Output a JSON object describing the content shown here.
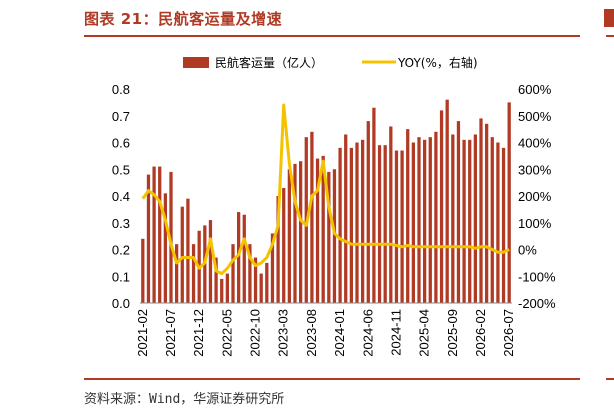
{
  "header": {
    "figure_title": "图表 21：民航客运量及增速",
    "source": "资料来源：Wind，华源证券研究所"
  },
  "chart_data": {
    "type": "bar+line",
    "colors": {
      "bar": "#b03a24",
      "line": "#f5c200",
      "accent": "#b03a24"
    },
    "legend": {
      "position": "top",
      "bar_label": "民航客运量（亿人）",
      "line_label": "YOY(%，右轴)"
    },
    "y_left": {
      "min": 0,
      "max": 0.8,
      "ticks": [
        "0.0",
        "0.1",
        "0.2",
        "0.3",
        "0.4",
        "0.5",
        "0.6",
        "0.7",
        "0.8"
      ]
    },
    "y_right": {
      "min": -200,
      "max": 600,
      "ticks": [
        "-200%",
        "-100%",
        "0%",
        "100%",
        "200%",
        "300%",
        "400%",
        "500%",
        "600%"
      ]
    },
    "x_tick_labels": [
      "2021-02",
      "2021-07",
      "2021-12",
      "2022-05",
      "2022-10",
      "2023-03",
      "2023-08",
      "2024-01",
      "2024-06",
      "2024-11",
      "2025-04",
      "2025-09",
      "2026-02",
      "2026-07"
    ],
    "months": [
      "2021-02",
      "2021-03",
      "2021-04",
      "2021-05",
      "2021-06",
      "2021-07",
      "2021-08",
      "2021-09",
      "2021-10",
      "2021-11",
      "2021-12",
      "2022-01",
      "2022-02",
      "2022-03",
      "2022-04",
      "2022-05",
      "2022-06",
      "2022-07",
      "2022-08",
      "2022-09",
      "2022-10",
      "2022-11",
      "2022-12",
      "2023-01",
      "2023-02",
      "2023-03",
      "2023-04",
      "2023-05",
      "2023-06",
      "2023-07",
      "2023-08",
      "2023-09",
      "2023-10",
      "2023-11",
      "2023-12",
      "2024-01",
      "2024-02",
      "2024-03",
      "2024-04",
      "2024-05",
      "2024-06",
      "2024-07",
      "2024-08",
      "2024-09",
      "2024-10",
      "2024-11",
      "2024-12",
      "2025-01",
      "2025-02",
      "2025-03",
      "2025-04",
      "2025-05",
      "2025-06",
      "2025-07",
      "2025-08",
      "2025-09",
      "2025-10",
      "2025-11",
      "2025-12",
      "2026-01",
      "2026-02",
      "2026-03",
      "2026-04",
      "2026-05",
      "2026-06",
      "2026-07"
    ],
    "series": [
      {
        "name": "民航客运量（亿人）",
        "axis": "left",
        "kind": "bar",
        "values": [
          0.24,
          0.48,
          0.51,
          0.51,
          0.41,
          0.49,
          0.22,
          0.36,
          0.39,
          0.22,
          0.27,
          0.29,
          0.31,
          0.17,
          0.09,
          0.11,
          0.22,
          0.34,
          0.33,
          0.22,
          0.17,
          0.11,
          0.15,
          0.26,
          0.4,
          0.43,
          0.5,
          0.52,
          0.53,
          0.62,
          0.64,
          0.54,
          0.55,
          0.49,
          0.5,
          0.58,
          0.63,
          0.58,
          0.6,
          0.61,
          0.68,
          0.73,
          0.59,
          0.59,
          0.66,
          0.57,
          0.57,
          0.65,
          0.6,
          0.62,
          0.61,
          0.62,
          0.64,
          0.72,
          0.76,
          0.63,
          0.68,
          0.61,
          0.61,
          0.63,
          0.69,
          0.67,
          0.62,
          0.6,
          0.58,
          0.75
        ]
      },
      {
        "name": "YOY(%，右轴)",
        "axis": "right",
        "kind": "line",
        "values": [
          190,
          220,
          205,
          180,
          110,
          20,
          -50,
          -30,
          -30,
          -30,
          -70,
          -50,
          40,
          -80,
          -90,
          -70,
          -40,
          -20,
          40,
          -30,
          -60,
          -50,
          -30,
          20,
          90,
          540,
          320,
          180,
          110,
          90,
          200,
          220,
          330,
          160,
          60,
          40,
          30,
          20,
          20,
          20,
          20,
          20,
          20,
          20,
          20,
          15,
          10,
          15,
          10,
          10,
          10,
          10,
          10,
          10,
          10,
          10,
          10,
          10,
          10,
          5,
          10,
          10,
          0,
          -10,
          -10,
          0
        ]
      }
    ]
  }
}
